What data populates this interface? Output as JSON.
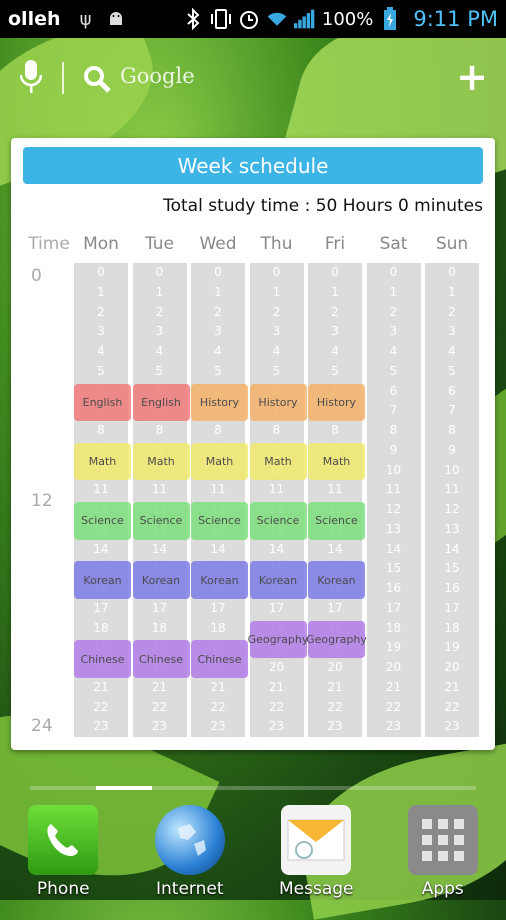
{
  "status_bar": {
    "carrier": "olleh",
    "battery": "100%",
    "time": "9:11 PM",
    "icons": [
      "usb-icon",
      "android-debug-icon",
      "bluetooth-icon",
      "vibrate-icon",
      "alarm-icon",
      "wifi-icon",
      "signal-icon",
      "battery-charging-icon"
    ]
  },
  "search_widget": {
    "label": "Google"
  },
  "schedule": {
    "title": "Week schedule",
    "total": "Total study time : 50 Hours 0 minutes",
    "time_header": "Time",
    "time_marks": [
      "0",
      "12",
      "24"
    ],
    "days": [
      "Mon",
      "Tue",
      "Wed",
      "Thu",
      "Fri",
      "Sat",
      "Sun"
    ],
    "hours": [
      "0",
      "1",
      "2",
      "3",
      "4",
      "5",
      "6",
      "7",
      "8",
      "9",
      "10",
      "11",
      "12",
      "13",
      "14",
      "15",
      "16",
      "17",
      "18",
      "19",
      "20",
      "21",
      "22",
      "23"
    ],
    "blocks": [
      {
        "day": 0,
        "start": 6,
        "end": 8,
        "subject": "English",
        "color": "#f07b7b"
      },
      {
        "day": 1,
        "start": 6,
        "end": 8,
        "subject": "English",
        "color": "#f07b7b"
      },
      {
        "day": 2,
        "start": 6,
        "end": 8,
        "subject": "History",
        "color": "#f5b26b"
      },
      {
        "day": 3,
        "start": 6,
        "end": 8,
        "subject": "History",
        "color": "#f5b26b"
      },
      {
        "day": 4,
        "start": 6,
        "end": 8,
        "subject": "History",
        "color": "#f5b26b"
      },
      {
        "day": 0,
        "start": 9,
        "end": 11,
        "subject": "Math",
        "color": "#f0ea6e"
      },
      {
        "day": 1,
        "start": 9,
        "end": 11,
        "subject": "Math",
        "color": "#f0ea6e"
      },
      {
        "day": 2,
        "start": 9,
        "end": 11,
        "subject": "Math",
        "color": "#f0ea6e"
      },
      {
        "day": 3,
        "start": 9,
        "end": 11,
        "subject": "Math",
        "color": "#f0ea6e"
      },
      {
        "day": 4,
        "start": 9,
        "end": 11,
        "subject": "Math",
        "color": "#f0ea6e"
      },
      {
        "day": 0,
        "start": 12,
        "end": 14,
        "subject": "Science",
        "color": "#7ee07e"
      },
      {
        "day": 1,
        "start": 12,
        "end": 14,
        "subject": "Science",
        "color": "#7ee07e"
      },
      {
        "day": 2,
        "start": 12,
        "end": 14,
        "subject": "Science",
        "color": "#7ee07e"
      },
      {
        "day": 3,
        "start": 12,
        "end": 14,
        "subject": "Science",
        "color": "#7ee07e"
      },
      {
        "day": 4,
        "start": 12,
        "end": 14,
        "subject": "Science",
        "color": "#7ee07e"
      },
      {
        "day": 0,
        "start": 15,
        "end": 17,
        "subject": "Korean",
        "color": "#7d7de8"
      },
      {
        "day": 1,
        "start": 15,
        "end": 17,
        "subject": "Korean",
        "color": "#7d7de8"
      },
      {
        "day": 2,
        "start": 15,
        "end": 17,
        "subject": "Korean",
        "color": "#7d7de8"
      },
      {
        "day": 3,
        "start": 15,
        "end": 17,
        "subject": "Korean",
        "color": "#7d7de8"
      },
      {
        "day": 4,
        "start": 15,
        "end": 17,
        "subject": "Korean",
        "color": "#7d7de8"
      },
      {
        "day": 0,
        "start": 19,
        "end": 21,
        "subject": "Chinese",
        "color": "#b27ee8"
      },
      {
        "day": 1,
        "start": 19,
        "end": 21,
        "subject": "Chinese",
        "color": "#b27ee8"
      },
      {
        "day": 2,
        "start": 19,
        "end": 21,
        "subject": "Chinese",
        "color": "#b27ee8"
      },
      {
        "day": 3,
        "start": 18,
        "end": 20,
        "subject": "Geography",
        "color": "#b27ee8"
      },
      {
        "day": 4,
        "start": 18,
        "end": 20,
        "subject": "Geography",
        "color": "#b27ee8"
      }
    ]
  },
  "dock": [
    {
      "label": "Phone",
      "icon": "phone-icon"
    },
    {
      "label": "Internet",
      "icon": "globe-icon"
    },
    {
      "label": "Message",
      "icon": "message-icon"
    },
    {
      "label": "Apps",
      "icon": "apps-grid-icon"
    }
  ]
}
